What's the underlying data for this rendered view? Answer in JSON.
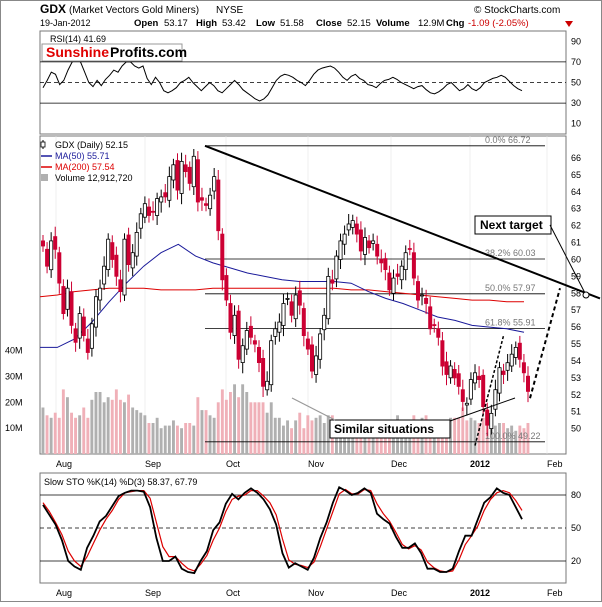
{
  "header": {
    "ticker": "GDX",
    "name": "(Market Vectors Gold Miners)",
    "exchange": "NYSE",
    "watermark": "© StockCharts.com",
    "date": "19-Jan-2012",
    "open_label": "Open",
    "open": "53.17",
    "high_label": "High",
    "high": "53.42",
    "low_label": "Low",
    "low": "51.58",
    "close_label": "Close",
    "close": "52.15",
    "volume_label": "Volume",
    "volume": "12.9M",
    "chg_label": "Chg",
    "chg": "-1.09 (-2.05%)"
  },
  "colors": {
    "up_candle": "#000000",
    "down_candle": "#cc0033",
    "ma50": "#1a1a9a",
    "ma200": "#dd0000",
    "volume_up": "#b0b0b0",
    "volume_down": "#f0b0b8",
    "stoch_k": "#000000",
    "stoch_d": "#dd0000",
    "brand_red": "#e00000"
  },
  "rsi_panel": {
    "legend": "RSI(14) 41.69",
    "brand_part1": "Sunshine",
    "brand_part2": "Profits.com",
    "levels": [
      "90",
      "70",
      "50",
      "30",
      "10"
    ]
  },
  "price_panel": {
    "legend": [
      {
        "text": "GDX (Daily) 52.15",
        "key": "price"
      },
      {
        "text": "MA(50) 55.71",
        "key": "ma50"
      },
      {
        "text": "MA(200) 57.54",
        "key": "ma200"
      },
      {
        "text": "Volume 12,912,720",
        "key": "volume"
      }
    ],
    "fib_labels": [
      "0.0% 66.72",
      "38.2% 60.03",
      "50.0% 57.97",
      "61.8% 55.91",
      "100.0% 49.22"
    ],
    "annotations": {
      "next_target": "Next target",
      "similar": "Similar situations"
    },
    "y_ticks": [
      "66",
      "65",
      "64",
      "63",
      "62",
      "61",
      "60",
      "59",
      "58",
      "57",
      "56",
      "55",
      "54",
      "53",
      "52",
      "51",
      "50"
    ],
    "volume_ticks": [
      "40M",
      "30M",
      "20M",
      "10M"
    ]
  },
  "stoch_panel": {
    "legend": "Slow STO %K(14) %D(3) 58.37, 67.79",
    "levels": [
      "80",
      "50",
      "20"
    ]
  },
  "x_axis": {
    "labels": [
      "Aug",
      "Sep",
      "Oct",
      "Nov",
      "Dec",
      "2012",
      "Feb"
    ]
  },
  "chart_data": [
    {
      "type": "line",
      "title": "RSI(14) 41.69",
      "ylim": [
        0,
        100
      ],
      "reference_lines": [
        70,
        50,
        30
      ],
      "series": [
        {
          "name": "RSI(14)",
          "values": [
            45,
            52,
            60,
            58,
            48,
            52,
            62,
            70,
            72,
            70,
            60,
            50,
            46,
            52,
            47,
            53,
            57,
            62,
            60,
            66,
            70,
            70,
            66,
            64,
            66,
            54,
            48,
            55,
            50,
            42,
            40,
            42,
            45,
            50,
            52,
            55,
            50,
            46,
            42,
            46,
            50,
            47,
            42,
            40,
            44,
            48,
            52,
            48,
            43,
            40,
            37,
            34,
            32,
            34,
            38,
            45,
            52,
            56,
            58,
            57,
            55,
            52,
            50,
            47,
            52,
            58,
            62,
            64,
            65,
            66,
            64,
            60,
            55,
            52,
            56,
            58,
            54,
            52,
            48,
            47,
            45,
            49,
            52,
            53,
            55,
            53,
            50,
            48,
            46,
            44,
            46,
            47,
            43,
            40,
            39,
            41,
            44,
            48,
            50,
            46,
            42,
            44,
            48,
            44,
            42,
            45,
            50,
            52,
            54,
            55,
            57,
            55,
            51,
            47,
            44,
            42
          ]
        }
      ]
    },
    {
      "type": "line",
      "title": "GDX (Daily) 52.15",
      "ylim": [
        48.5,
        67.3
      ],
      "series": [
        {
          "name": "GDX (Daily) 52.15",
          "values": [
            60.8,
            59.6,
            61.1,
            60.6,
            58.6,
            56.8,
            58.3,
            56.1,
            55.1,
            56.8,
            55.5,
            54.5,
            56.2,
            57.8,
            58.3,
            59.6,
            61.2,
            60.0,
            59.0,
            58.1,
            61.2,
            59.7,
            60.4,
            61.6,
            62.7,
            63.3,
            62.6,
            62.8,
            63.6,
            63.7,
            63.7,
            64.9,
            65.6,
            64.1,
            65.8,
            65.2,
            64.5,
            66.1,
            63.4,
            63.5,
            63.2,
            63.8,
            64.9,
            61.7,
            58.8,
            57.6,
            55.7,
            56.7,
            54.1,
            54.9,
            55.8,
            55.4,
            55.0,
            53.9,
            52.5,
            52.8,
            55.2,
            55.9,
            56.3,
            57.4,
            57.7,
            56.7,
            57.9,
            57.3,
            55.5,
            54.7,
            53.4,
            54.3,
            55.6,
            56.7,
            59.0,
            58.6,
            60.2,
            61.1,
            61.5,
            62.1,
            62.3,
            61.5,
            60.5,
            61.3,
            60.7,
            61.1,
            60.2,
            59.8,
            59.4,
            58.2,
            58.9,
            59.0,
            59.6,
            60.4,
            60.6,
            58.9,
            57.6,
            57.9,
            57.4,
            55.9,
            56.1,
            55.4,
            53.7,
            53.2,
            53.7,
            53.0,
            52.5,
            51.6,
            51.5,
            52.9,
            53.3,
            52.9,
            51.3,
            50.2,
            50.9,
            52.3,
            53.6,
            53.2,
            53.9,
            54.4,
            54.8,
            54.1,
            53.3,
            52.2
          ]
        },
        {
          "name": "MA(50) 55.71",
          "values": [
            54.8,
            54.8,
            55.3,
            56.3,
            57.5,
            58.6,
            59.6,
            60.4,
            60.9,
            60.2,
            59.8,
            59.5,
            59.2,
            59.0,
            58.8,
            58.7,
            58.7,
            58.7,
            58.6,
            58.1,
            57.7,
            57.4,
            57.0,
            56.6,
            56.4,
            56.1,
            56.0,
            55.9,
            55.7
          ]
        },
        {
          "name": "MA(200) 57.54",
          "values": [
            57.8,
            57.9,
            58.1,
            58.2,
            58.3,
            58.3,
            58.3,
            58.2,
            58.2,
            58.2,
            58.3,
            58.3,
            58.3,
            58.3,
            58.3,
            58.3,
            58.3,
            58.3,
            58.2,
            58.2,
            58.1,
            58.0,
            57.9,
            57.8,
            57.7,
            57.6,
            57.6,
            57.5,
            57.5
          ]
        }
      ],
      "fibonacci": {
        "labels": [
          "0.0%",
          "38.2%",
          "50.0%",
          "61.8%",
          "100.0%"
        ],
        "values": [
          66.72,
          60.03,
          57.97,
          55.91,
          49.22
        ]
      }
    },
    {
      "type": "bar",
      "title": "Volume 12,912,720",
      "ylim": [
        0,
        48
      ],
      "series": [
        {
          "name": "Volume 12,912,720",
          "values": [
            18,
            15,
            14,
            16,
            14,
            25,
            22,
            16,
            14,
            15,
            18,
            14,
            21,
            24,
            24,
            20,
            22,
            21,
            25,
            21,
            20,
            23,
            18,
            17,
            16,
            15,
            12,
            12,
            14,
            10,
            11,
            11,
            13,
            11,
            10,
            12,
            12,
            11,
            22,
            17,
            17,
            15,
            14,
            20,
            25,
            21,
            24,
            27,
            22,
            27,
            24,
            20,
            20,
            20,
            20,
            16,
            20,
            14,
            14,
            11,
            13,
            10,
            13,
            16,
            10,
            15,
            13,
            14,
            15,
            12,
            15,
            15,
            13,
            13,
            12,
            11,
            12,
            11,
            11,
            12,
            13,
            11,
            12,
            11,
            12,
            13,
            11,
            15,
            13,
            12,
            13,
            15,
            12,
            14,
            15,
            13,
            12,
            12,
            11,
            13,
            14,
            14,
            14,
            18,
            13,
            14,
            13,
            12,
            14,
            13,
            11,
            11,
            12,
            12,
            10,
            11,
            9,
            11,
            10,
            12,
            13,
            14,
            12,
            13,
            11
          ]
        }
      ]
    },
    {
      "type": "line",
      "title": "Slow STO %K(14) %D(3) 58.37, 67.79",
      "ylim": [
        0,
        100
      ],
      "reference_lines": [
        80,
        50,
        20
      ],
      "series": [
        {
          "name": "%K(14)",
          "values": [
            71,
            62,
            53,
            39,
            20,
            15,
            12,
            32,
            43,
            56,
            61,
            70,
            79,
            82,
            84,
            84,
            83,
            69,
            41,
            20,
            20,
            24,
            13,
            10,
            9,
            20,
            29,
            48,
            55,
            72,
            81,
            76,
            82,
            86,
            82,
            76,
            67,
            53,
            27,
            14,
            18,
            15,
            12,
            23,
            41,
            55,
            73,
            87,
            84,
            80,
            82,
            86,
            82,
            63,
            58,
            54,
            42,
            32,
            32,
            36,
            27,
            13,
            13,
            10,
            10,
            13,
            29,
            43,
            43,
            58,
            73,
            78,
            86,
            82,
            80,
            69,
            58
          ]
        },
        {
          "name": "%D(3)",
          "values": [
            73,
            65,
            55,
            44,
            29,
            20,
            15,
            24,
            36,
            48,
            58,
            66,
            76,
            82,
            83,
            84,
            84,
            77,
            55,
            33,
            24,
            24,
            18,
            13,
            11,
            17,
            25,
            39,
            50,
            65,
            76,
            79,
            80,
            84,
            84,
            79,
            73,
            62,
            40,
            21,
            17,
            16,
            14,
            19,
            33,
            49,
            65,
            81,
            85,
            81,
            81,
            85,
            84,
            72,
            63,
            56,
            46,
            35,
            31,
            34,
            30,
            19,
            14,
            11,
            10,
            11,
            21,
            35,
            43,
            52,
            66,
            76,
            82,
            84,
            82,
            75,
            66
          ]
        }
      ]
    }
  ]
}
